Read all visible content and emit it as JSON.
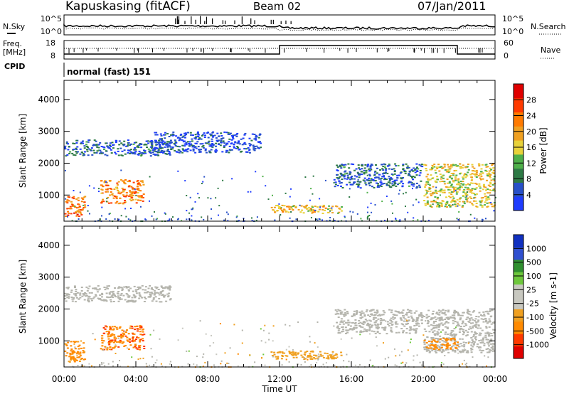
{
  "header": {
    "station": "Kapuskasing (fitACF)",
    "beam": "Beam 02",
    "date": "07/Jan/2011"
  },
  "strip_labels": {
    "nsky": "N.Sky",
    "nsearch": "N.Search",
    "freq_line1": "Freq.",
    "freq_line2": "[MHz]",
    "nave": "Nave",
    "cpid": "CPID",
    "cpid_value": "normal (fast) 151",
    "noise_ticks": [
      "10^5",
      "10^0"
    ],
    "freq_ticks": [
      "18",
      "8"
    ],
    "nave_ticks": [
      "60",
      "0"
    ]
  },
  "colors": {
    "power_scale": [
      "#1f3cff",
      "#2750c8",
      "#2e7a45",
      "#4fb04a",
      "#e8d23a",
      "#f0a020",
      "#ff7a00",
      "#ff3a00",
      "#e00000"
    ],
    "velocity_scale": [
      "#e00000",
      "#ff3a00",
      "#ff8a00",
      "#f0a020",
      "#c8c8c0",
      "#c8c8c0",
      "#6ec83c",
      "#2f8f2f",
      "#3050d0",
      "#1030c0"
    ],
    "ground_scatter": "#b4b4ac"
  },
  "chart_data": [
    {
      "type": "heatmap",
      "panel": "power",
      "ylabel": "Slant Range [km]",
      "y_ticks": [
        1000,
        2000,
        3000,
        4000
      ],
      "ylim": [
        180,
        4600
      ],
      "x_ticks": [
        "00:00",
        "04:00",
        "08:00",
        "12:00",
        "16:00",
        "20:00",
        "00:00"
      ],
      "xlim_hours": [
        0,
        24
      ],
      "colorbar": {
        "label": "Power [dB]",
        "ticks": [
          4,
          8,
          12,
          16,
          20,
          24,
          28
        ],
        "range": [
          0,
          32
        ]
      },
      "regions": [
        {
          "t": [
            0.0,
            1.2
          ],
          "r": [
            300,
            1000
          ],
          "level": 24
        },
        {
          "t": [
            2.0,
            4.5
          ],
          "r": [
            700,
            1500
          ],
          "level": 22
        },
        {
          "t": [
            0.0,
            6.0
          ],
          "r": [
            2200,
            2750
          ],
          "level": 6
        },
        {
          "t": [
            11.5,
            15.5
          ],
          "r": [
            400,
            700
          ],
          "level": 18
        },
        {
          "t": [
            15.0,
            20.0
          ],
          "r": [
            1200,
            2000
          ],
          "level": 6
        },
        {
          "t": [
            20.0,
            24.0
          ],
          "r": [
            600,
            2000
          ],
          "level": 16
        },
        {
          "t": [
            5.0,
            11.0
          ],
          "r": [
            2300,
            3000
          ],
          "level": 4
        }
      ]
    },
    {
      "type": "heatmap",
      "panel": "velocity",
      "ylabel": "Slant Range [km]",
      "y_ticks": [
        1000,
        2000,
        3000,
        4000
      ],
      "ylim": [
        180,
        4600
      ],
      "x_ticks": [
        "00:00",
        "04:00",
        "08:00",
        "12:00",
        "16:00",
        "20:00",
        "00:00"
      ],
      "xlim_hours": [
        0,
        24
      ],
      "xlabel": "Time UT",
      "colorbar": {
        "label": "Velocity [m s-1]",
        "ticks": [
          "1000",
          "500",
          "100",
          "25",
          "-25",
          "-100",
          "-500",
          "-1000"
        ]
      },
      "regions": [
        {
          "t": [
            0.0,
            1.2
          ],
          "r": [
            300,
            1000
          ],
          "kind": "velocity",
          "v": -150
        },
        {
          "t": [
            2.0,
            4.5
          ],
          "r": [
            700,
            1500
          ],
          "kind": "velocity",
          "v": -400
        },
        {
          "t": [
            0.0,
            6.0
          ],
          "r": [
            2200,
            2750
          ],
          "kind": "ground"
        },
        {
          "t": [
            11.5,
            15.5
          ],
          "r": [
            400,
            700
          ],
          "kind": "velocity",
          "v": -60
        },
        {
          "t": [
            15.0,
            20.0
          ],
          "r": [
            1200,
            2000
          ],
          "kind": "ground"
        },
        {
          "t": [
            20.0,
            24.0
          ],
          "r": [
            600,
            2000
          ],
          "kind": "ground"
        },
        {
          "t": [
            20.0,
            22.0
          ],
          "r": [
            700,
            1100
          ],
          "kind": "velocity",
          "v": -300
        }
      ]
    }
  ]
}
